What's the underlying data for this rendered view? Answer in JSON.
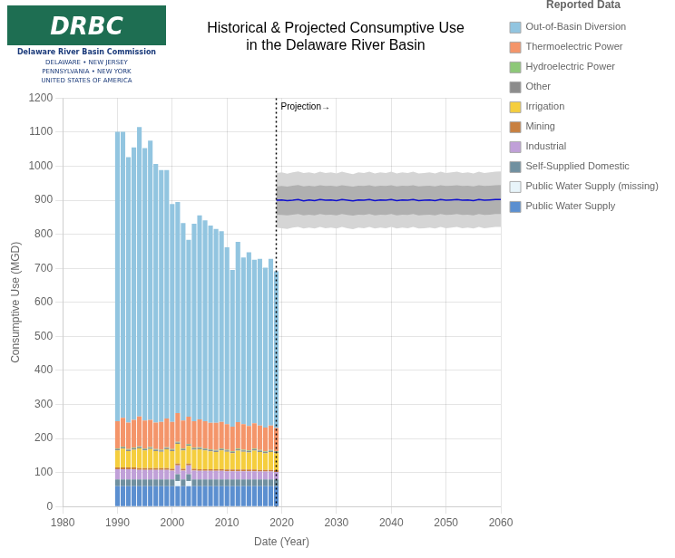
{
  "chart_data": {
    "type": "bar",
    "title": "Historical & Projected Consumptive Use\nin the Delaware River Basin",
    "x_label": "Date (Year)",
    "y_label": "Consumptive Use (MGD)",
    "stacked": true,
    "grid": true,
    "legend": "right",
    "legend_title": "Reported Data",
    "xlim": [
      1980,
      2060
    ],
    "xticks": [
      1980,
      1990,
      2000,
      2010,
      2020,
      2030,
      2040,
      2050,
      2060
    ],
    "ylim": [
      0,
      1200
    ],
    "yticks": [
      0,
      100,
      200,
      300,
      400,
      500,
      600,
      700,
      800,
      900,
      1000,
      1100,
      1200
    ],
    "x": [
      1990,
      1991,
      1992,
      1993,
      1994,
      1995,
      1996,
      1997,
      1998,
      1999,
      2000,
      2001,
      2002,
      2003,
      2004,
      2005,
      2006,
      2007,
      2008,
      2009,
      2010,
      2011,
      2012,
      2013,
      2014,
      2015,
      2016,
      2017,
      2018,
      2019
    ],
    "series": [
      {
        "name": "Public Water Supply",
        "color": "#5B8FD0",
        "values": [
          60,
          60,
          60,
          60,
          60,
          60,
          60,
          60,
          60,
          60,
          60,
          60,
          60,
          60,
          60,
          60,
          60,
          60,
          60,
          60,
          60,
          60,
          60,
          60,
          60,
          60,
          60,
          60,
          60,
          60
        ]
      },
      {
        "name": "Public Water Supply (missing)",
        "color": "#E8F4FA",
        "values": [
          0,
          0,
          0,
          0,
          0,
          0,
          0,
          0,
          0,
          0,
          0,
          15,
          0,
          15,
          0,
          0,
          0,
          0,
          0,
          0,
          0,
          0,
          0,
          0,
          0,
          0,
          0,
          0,
          0,
          0
        ]
      },
      {
        "name": "Self-Supplied Domestic",
        "color": "#7090A0",
        "values": [
          20,
          20,
          20,
          20,
          20,
          20,
          20,
          20,
          20,
          20,
          20,
          20,
          20,
          20,
          20,
          20,
          20,
          20,
          20,
          20,
          20,
          20,
          20,
          20,
          20,
          20,
          20,
          20,
          20,
          20
        ]
      },
      {
        "name": "Industrial",
        "color": "#C0A0D8",
        "values": [
          30,
          30,
          30,
          30,
          28,
          28,
          28,
          28,
          28,
          28,
          26,
          26,
          26,
          26,
          26,
          25,
          25,
          25,
          25,
          25,
          24,
          24,
          24,
          24,
          24,
          24,
          23,
          23,
          23,
          22
        ]
      },
      {
        "name": "Mining",
        "color": "#C88040",
        "values": [
          5,
          5,
          5,
          5,
          5,
          5,
          5,
          5,
          5,
          5,
          5,
          5,
          5,
          5,
          5,
          5,
          5,
          5,
          5,
          5,
          5,
          5,
          5,
          5,
          5,
          5,
          5,
          5,
          5,
          5
        ]
      },
      {
        "name": "Irrigation",
        "color": "#F5CE3E",
        "values": [
          50,
          55,
          48,
          52,
          58,
          52,
          56,
          50,
          48,
          55,
          52,
          58,
          54,
          52,
          56,
          58,
          55,
          52,
          50,
          55,
          52,
          48,
          55,
          52,
          50,
          55,
          52,
          48,
          52,
          50
        ]
      },
      {
        "name": "Other",
        "color": "#8C8C8C",
        "values": [
          4,
          4,
          4,
          4,
          4,
          4,
          4,
          4,
          4,
          4,
          4,
          4,
          4,
          4,
          4,
          4,
          4,
          4,
          4,
          4,
          4,
          4,
          4,
          4,
          4,
          4,
          4,
          4,
          4,
          4
        ]
      },
      {
        "name": "Hydroelectric Power",
        "color": "#8DC878",
        "values": [
          2,
          2,
          2,
          2,
          2,
          2,
          2,
          2,
          2,
          2,
          2,
          2,
          2,
          2,
          2,
          2,
          2,
          2,
          2,
          2,
          2,
          2,
          2,
          2,
          2,
          2,
          2,
          2,
          2,
          2
        ]
      },
      {
        "name": "Thermoelectric Power",
        "color": "#F4956A",
        "values": [
          80,
          85,
          78,
          82,
          88,
          82,
          80,
          78,
          82,
          85,
          80,
          85,
          82,
          80,
          78,
          82,
          80,
          78,
          80,
          78,
          75,
          72,
          78,
          75,
          72,
          75,
          72,
          70,
          72,
          68
        ]
      },
      {
        "name": "Out-of-Basin Diversion",
        "color": "#92C5E0",
        "values": [
          850,
          840,
          780,
          800,
          850,
          800,
          820,
          760,
          740,
          730,
          640,
          620,
          580,
          520,
          580,
          600,
          590,
          580,
          570,
          560,
          520,
          460,
          530,
          490,
          510,
          480,
          490,
          470,
          490,
          460
        ]
      }
    ],
    "projection": {
      "x": [
        2019,
        2020,
        2021,
        2022,
        2023,
        2024,
        2025,
        2026,
        2027,
        2028,
        2029,
        2030,
        2031,
        2032,
        2033,
        2034,
        2035,
        2036,
        2037,
        2038,
        2039,
        2040,
        2041,
        2042,
        2043,
        2044,
        2045,
        2046,
        2047,
        2048,
        2049,
        2050,
        2051,
        2052,
        2053,
        2054,
        2055,
        2056,
        2057,
        2058,
        2059,
        2060
      ],
      "bands": [
        {
          "color": "#D5D5D5",
          "lower": [
            820,
            818,
            816,
            820,
            822,
            817,
            820,
            817,
            822,
            818,
            820,
            817,
            822,
            818,
            815,
            820,
            818,
            822,
            817,
            820,
            818,
            822,
            817,
            820,
            818,
            822,
            817,
            818,
            820,
            817,
            822,
            818,
            820,
            822,
            818,
            820,
            817,
            822,
            818,
            820,
            822,
            822
          ],
          "upper": [
            980,
            982,
            978,
            982,
            985,
            980,
            982,
            979,
            984,
            980,
            982,
            979,
            984,
            980,
            977,
            982,
            980,
            984,
            979,
            982,
            980,
            984,
            979,
            982,
            980,
            984,
            979,
            980,
            982,
            979,
            984,
            980,
            982,
            984,
            980,
            982,
            979,
            984,
            980,
            982,
            984,
            985
          ]
        },
        {
          "color": "#B0B0B0",
          "lower": [
            858,
            857,
            856,
            858,
            860,
            856,
            858,
            856,
            860,
            857,
            858,
            856,
            860,
            857,
            855,
            858,
            857,
            860,
            856,
            858,
            857,
            860,
            856,
            858,
            857,
            860,
            856,
            857,
            858,
            856,
            860,
            857,
            858,
            860,
            857,
            858,
            856,
            860,
            857,
            858,
            860,
            860
          ],
          "upper": [
            940,
            942,
            940,
            943,
            945,
            941,
            943,
            941,
            944,
            942,
            943,
            941,
            944,
            942,
            940,
            943,
            942,
            944,
            941,
            943,
            942,
            944,
            941,
            943,
            942,
            944,
            941,
            942,
            943,
            941,
            944,
            942,
            943,
            944,
            942,
            943,
            941,
            944,
            942,
            943,
            944,
            945
          ]
        }
      ],
      "mean": {
        "color": "#1010CC",
        "values": [
          900,
          901,
          899,
          900,
          902,
          898,
          901,
          899,
          902,
          900,
          901,
          899,
          902,
          900,
          898,
          901,
          900,
          902,
          899,
          901,
          900,
          902,
          899,
          901,
          900,
          902,
          899,
          900,
          901,
          899,
          902,
          900,
          901,
          902,
          900,
          901,
          899,
          902,
          900,
          901,
          902,
          902
        ]
      }
    },
    "annotations": [
      {
        "text": "Projection→",
        "x": 2019,
        "line_style": "dotted"
      }
    ],
    "logo": [
      "DRBC",
      "Delaware River Basin Commission",
      "DELAWARE  •  NEW JERSEY",
      "PENNSYLVANIA  •  NEW YORK",
      "UNITED STATES OF AMERICA"
    ]
  }
}
